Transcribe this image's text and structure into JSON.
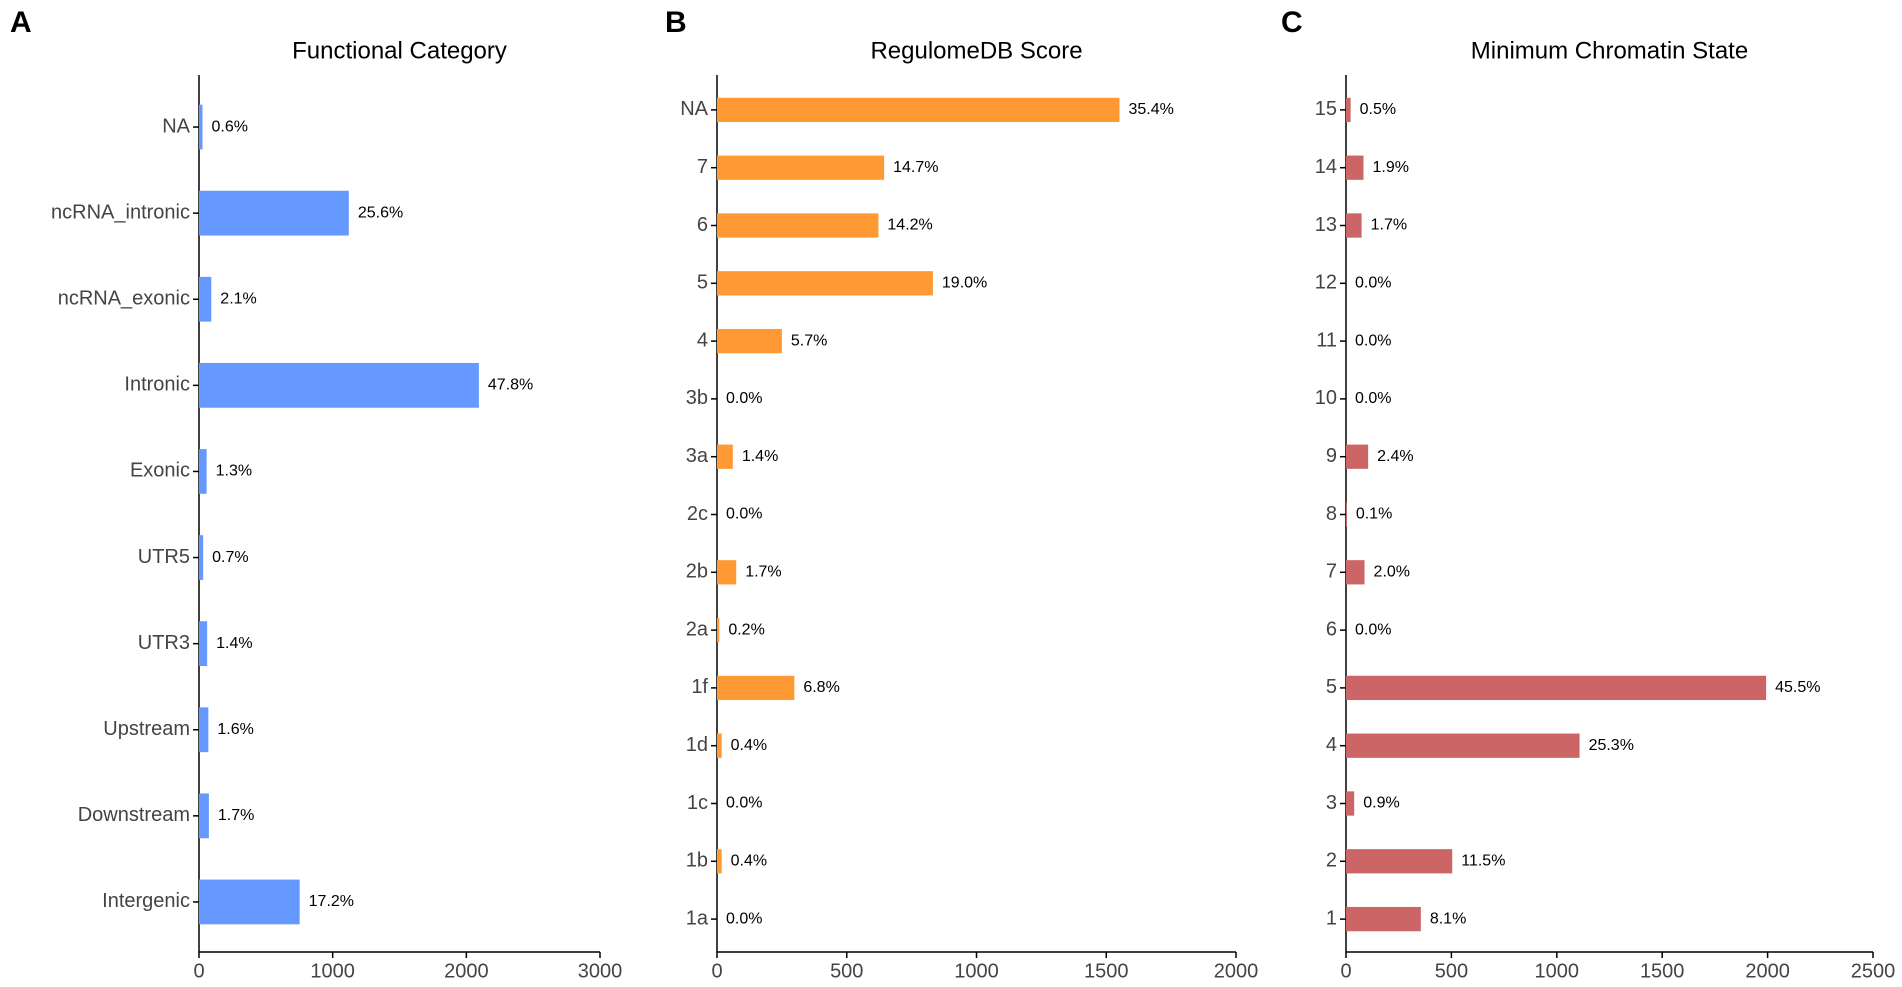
{
  "chart_data": [
    {
      "type": "bar",
      "orientation": "horizontal",
      "panel": "A",
      "title": "Functional Category",
      "categories": [
        "NA",
        "ncRNA_intronic",
        "ncRNA_exonic",
        "Intronic",
        "Exonic",
        "UTR5",
        "UTR3",
        "Upstream",
        "Downstream",
        "Intergenic"
      ],
      "values": [
        26,
        1121,
        92,
        2094,
        57,
        31,
        61,
        70,
        74,
        753
      ],
      "value_labels": [
        "0.6%",
        "25.6%",
        "2.1%",
        "47.8%",
        "1.3%",
        "0.7%",
        "1.4%",
        "1.6%",
        "1.7%",
        "17.2%"
      ],
      "color": "#6699ff",
      "xlim": [
        0,
        3000
      ],
      "xticks": [
        0,
        1000,
        2000,
        3000
      ]
    },
    {
      "type": "bar",
      "orientation": "horizontal",
      "panel": "B",
      "title": "RegulomeDB Score",
      "categories": [
        "NA",
        "7",
        "6",
        "5",
        "4",
        "3b",
        "3a",
        "2c",
        "2b",
        "2a",
        "1f",
        "1d",
        "1c",
        "1b",
        "1a"
      ],
      "values": [
        1551,
        644,
        622,
        832,
        250,
        0,
        61,
        0,
        74,
        9,
        298,
        18,
        0,
        18,
        0
      ],
      "value_labels": [
        "35.4%",
        "14.7%",
        "14.2%",
        "19.0%",
        "5.7%",
        "0.0%",
        "1.4%",
        "0.0%",
        "1.7%",
        "0.2%",
        "6.8%",
        "0.4%",
        "0.0%",
        "0.4%",
        "0.0%"
      ],
      "color": "#ff9933",
      "xlim": [
        0,
        2000
      ],
      "xticks": [
        0,
        500,
        1000,
        1500,
        2000
      ]
    },
    {
      "type": "bar",
      "orientation": "horizontal",
      "panel": "C",
      "title": "Minimum Chromatin State",
      "categories": [
        "15",
        "14",
        "13",
        "12",
        "11",
        "10",
        "9",
        "8",
        "7",
        "6",
        "5",
        "4",
        "3",
        "2",
        "1"
      ],
      "values": [
        22,
        83,
        74,
        0,
        0,
        0,
        105,
        4,
        88,
        0,
        1993,
        1108,
        39,
        504,
        355
      ],
      "value_labels": [
        "0.5%",
        "1.9%",
        "1.7%",
        "0.0%",
        "0.0%",
        "0.0%",
        "2.4%",
        "0.1%",
        "2.0%",
        "0.0%",
        "45.5%",
        "25.3%",
        "0.9%",
        "11.5%",
        "8.1%"
      ],
      "color": "#cc6666",
      "xlim": [
        0,
        2500
      ],
      "xticks": [
        0,
        500,
        1000,
        1500,
        2000,
        2500
      ]
    }
  ]
}
